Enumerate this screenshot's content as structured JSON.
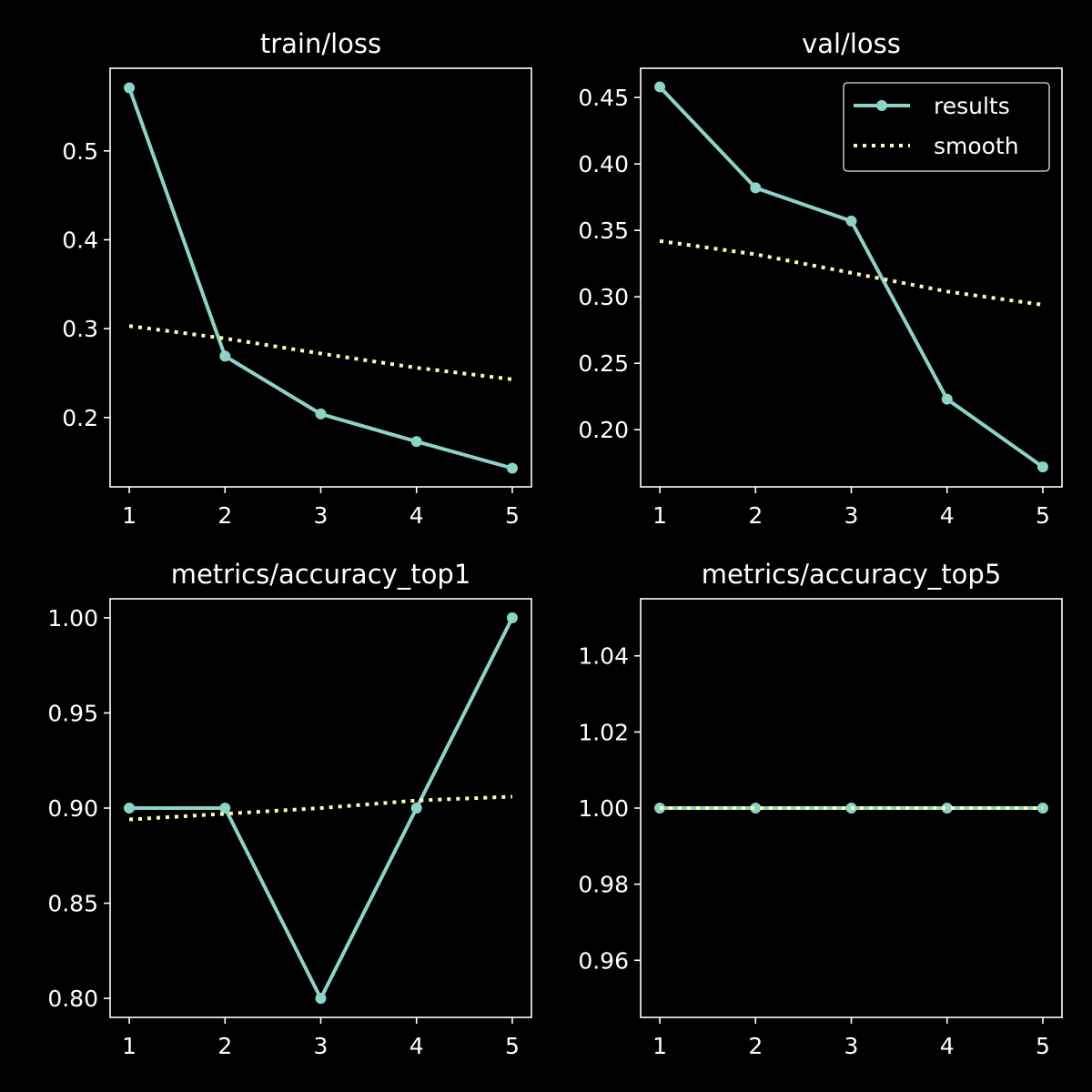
{
  "colors": {
    "background": "#000000",
    "axes": "#ffffff",
    "results": "#8dd3c7",
    "smooth": "#ffffb3",
    "legend_border": "#bbbbbb"
  },
  "legend": {
    "placement": "top-right of val/loss panel",
    "results_label": "results",
    "smooth_label": "smooth"
  },
  "chart_data": [
    {
      "type": "line",
      "title": "train/loss",
      "xlabel": "",
      "ylabel": "",
      "x": [
        1,
        2,
        3,
        4,
        5
      ],
      "xlim": [
        0.8,
        5.2
      ],
      "ylim": [
        0.122,
        0.593
      ],
      "xticks": [
        1,
        2,
        3,
        4,
        5
      ],
      "yticks": [
        0.2,
        0.3,
        0.4,
        0.5
      ],
      "ytick_labels": [
        "0.2",
        "0.3",
        "0.4",
        "0.5"
      ],
      "grid": false,
      "show_legend": false,
      "series": [
        {
          "name": "results",
          "style": "solid-with-markers",
          "values": [
            0.571,
            0.269,
            0.204,
            0.173,
            0.143
          ]
        },
        {
          "name": "smooth",
          "style": "dotted",
          "values": [
            0.303,
            0.289,
            0.272,
            0.256,
            0.243
          ]
        }
      ]
    },
    {
      "type": "line",
      "title": "val/loss",
      "xlabel": "",
      "ylabel": "",
      "x": [
        1,
        2,
        3,
        4,
        5
      ],
      "xlim": [
        0.8,
        5.2
      ],
      "ylim": [
        0.157,
        0.472
      ],
      "xticks": [
        1,
        2,
        3,
        4,
        5
      ],
      "yticks": [
        0.2,
        0.25,
        0.3,
        0.35,
        0.4,
        0.45
      ],
      "ytick_labels": [
        "0.20",
        "0.25",
        "0.30",
        "0.35",
        "0.40",
        "0.45"
      ],
      "grid": false,
      "show_legend": true,
      "series": [
        {
          "name": "results",
          "style": "solid-with-markers",
          "values": [
            0.458,
            0.382,
            0.357,
            0.223,
            0.172
          ]
        },
        {
          "name": "smooth",
          "style": "dotted",
          "values": [
            0.342,
            0.332,
            0.318,
            0.304,
            0.294
          ]
        }
      ]
    },
    {
      "type": "line",
      "title": "metrics/accuracy_top1",
      "xlabel": "",
      "ylabel": "",
      "x": [
        1,
        2,
        3,
        4,
        5
      ],
      "xlim": [
        0.8,
        5.2
      ],
      "ylim": [
        0.79,
        1.01
      ],
      "xticks": [
        1,
        2,
        3,
        4,
        5
      ],
      "yticks": [
        0.8,
        0.85,
        0.9,
        0.95,
        1.0
      ],
      "ytick_labels": [
        "0.80",
        "0.85",
        "0.90",
        "0.95",
        "1.00"
      ],
      "grid": false,
      "show_legend": false,
      "series": [
        {
          "name": "results",
          "style": "solid-with-markers",
          "values": [
            0.9,
            0.9,
            0.8,
            0.9,
            1.0
          ]
        },
        {
          "name": "smooth",
          "style": "dotted",
          "values": [
            0.894,
            0.897,
            0.9,
            0.904,
            0.906
          ]
        }
      ]
    },
    {
      "type": "line",
      "title": "metrics/accuracy_top5",
      "xlabel": "",
      "ylabel": "",
      "x": [
        1,
        2,
        3,
        4,
        5
      ],
      "xlim": [
        0.8,
        5.2
      ],
      "ylim": [
        0.945,
        1.055
      ],
      "xticks": [
        1,
        2,
        3,
        4,
        5
      ],
      "yticks": [
        0.96,
        0.98,
        1.0,
        1.02,
        1.04
      ],
      "ytick_labels": [
        "0.96",
        "0.98",
        "1.00",
        "1.02",
        "1.04"
      ],
      "grid": false,
      "show_legend": false,
      "series": [
        {
          "name": "results",
          "style": "solid-with-markers",
          "values": [
            1.0,
            1.0,
            1.0,
            1.0,
            1.0
          ]
        },
        {
          "name": "smooth",
          "style": "dotted",
          "values": [
            1.0,
            1.0,
            1.0,
            1.0,
            1.0
          ]
        }
      ]
    }
  ]
}
